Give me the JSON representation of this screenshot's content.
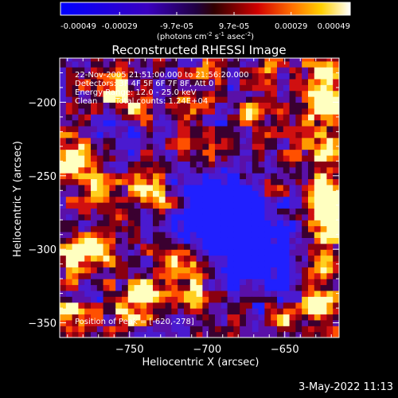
{
  "colorbar": {
    "ticks": [
      "-0.00049",
      "-0.00029",
      "-9.7e-05",
      "9.7e-05",
      "0.00029",
      "0.00049"
    ],
    "units_main": "(photons cm",
    "units_sup1": "-2",
    "units_mid1": " s",
    "units_sup2": "-1",
    "units_mid2": " asec",
    "units_sup3": "-2",
    "units_end": ")",
    "range": [
      -0.00049,
      0.00049
    ]
  },
  "chart_data": {
    "type": "heatmap",
    "title": "Reconstructed RHESSI Image",
    "xlabel": "Heliocentric X (arcsec)",
    "ylabel": "Heliocentric Y (arcsec)",
    "xlim": [
      -795,
      -615
    ],
    "ylim": [
      -360,
      -170
    ],
    "xticks": [
      -750,
      -700,
      -650
    ],
    "yticks": [
      -200,
      -250,
      -300,
      -350
    ],
    "colormap": "rainbow-hot (black-blue-purple-red-orange-yellow-white)",
    "peak_position": [
      -620,
      -278
    ],
    "annotations": [
      "22-Nov-2005 21:51:00.000 to 21:56:20.000",
      "Detectors: 3F 4F 5F 6F 7F 8F, Att 0",
      "Energy Range: 12.0 - 25.0 keV",
      "Clean",
      "Total counts: 1.24E+04",
      "Position of Peak = [-620,-278]"
    ],
    "footer_date": "3-May-2022 11:13"
  }
}
